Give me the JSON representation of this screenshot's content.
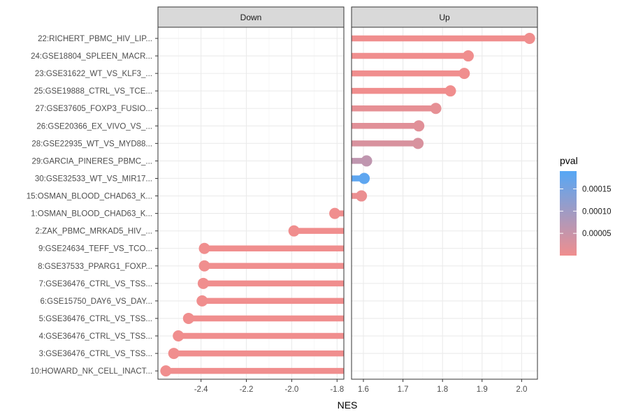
{
  "chart_data": {
    "type": "lollipop",
    "xlabel": "NES",
    "facets": [
      {
        "name": "Down",
        "xlim": [
          -2.59,
          -1.77
        ],
        "ticks": [
          -2.4,
          -2.2,
          -2.0,
          -1.8
        ],
        "tick_labels": [
          "-2.4",
          "-2.2",
          "-2.0",
          "-1.8"
        ]
      },
      {
        "name": "Up",
        "xlim": [
          1.57,
          2.04
        ],
        "ticks": [
          1.6,
          1.7,
          1.8,
          1.9,
          2.0
        ],
        "tick_labels": [
          "1.6",
          "1.7",
          "1.8",
          "1.9",
          "2.0"
        ]
      }
    ],
    "categories": [
      "22:RICHERT_PBMC_HIV_LIP...",
      "24:GSE18804_SPLEEN_MACR...",
      "23:GSE31622_WT_VS_KLF3_...",
      "25:GSE19888_CTRL_VS_TCE...",
      "27:GSE37605_FOXP3_FUSIO...",
      "26:GSE20366_EX_VIVO_VS_...",
      "28:GSE22935_WT_VS_MYD88...",
      "29:GARCIA_PINERES_PBMC_...",
      "30:GSE32533_WT_VS_MIR17...",
      "15:OSMAN_BLOOD_CHAD63_K...",
      "1:OSMAN_BLOOD_CHAD63_K...",
      "2:ZAK_PBMC_MRKAD5_HIV_...",
      "9:GSE24634_TEFF_VS_TCO...",
      "8:GSE37533_PPARG1_FOXP...",
      "7:GSE36476_CTRL_VS_TSS...",
      "6:GSE15750_DAY6_VS_DAY...",
      "5:GSE36476_CTRL_VS_TSS...",
      "4:GSE36476_CTRL_VS_TSS...",
      "3:GSE36476_CTRL_VS_TSS...",
      "10:HOWARD_NK_CELL_INACT..."
    ],
    "points": [
      {
        "category": "22:RICHERT_PBMC_HIV_LIP...",
        "facet": "Up",
        "nes": 2.02,
        "pval": 0.0
      },
      {
        "category": "24:GSE18804_SPLEEN_MACR...",
        "facet": "Up",
        "nes": 1.865,
        "pval": 0.0
      },
      {
        "category": "23:GSE31622_WT_VS_KLF3_...",
        "facet": "Up",
        "nes": 1.855,
        "pval": 0.0
      },
      {
        "category": "25:GSE19888_CTRL_VS_TCE...",
        "facet": "Up",
        "nes": 1.82,
        "pval": 0.0
      },
      {
        "category": "27:GSE37605_FOXP3_FUSIO...",
        "facet": "Up",
        "nes": 1.783,
        "pval": 1.2e-05
      },
      {
        "category": "26:GSE20366_EX_VIVO_VS_...",
        "facet": "Up",
        "nes": 1.74,
        "pval": 1.8e-05
      },
      {
        "category": "28:GSE22935_WT_VS_MYD88...",
        "facet": "Up",
        "nes": 1.738,
        "pval": 3e-05
      },
      {
        "category": "29:GARCIA_PINERES_PBMC_...",
        "facet": "Up",
        "nes": 1.608,
        "pval": 6e-05
      },
      {
        "category": "30:GSE32533_WT_VS_MIR17...",
        "facet": "Up",
        "nes": 1.602,
        "pval": 0.00018
      },
      {
        "category": "15:OSMAN_BLOOD_CHAD63_K...",
        "facet": "Up",
        "nes": 1.595,
        "pval": 6e-06
      },
      {
        "category": "1:OSMAN_BLOOD_CHAD63_K...",
        "facet": "Down",
        "nes": -1.81,
        "pval": 0.0
      },
      {
        "category": "2:ZAK_PBMC_MRKAD5_HIV_...",
        "facet": "Down",
        "nes": -1.99,
        "pval": 0.0
      },
      {
        "category": "9:GSE24634_TEFF_VS_TCO...",
        "facet": "Down",
        "nes": -2.385,
        "pval": 0.0
      },
      {
        "category": "8:GSE37533_PPARG1_FOXP...",
        "facet": "Down",
        "nes": -2.385,
        "pval": 0.0
      },
      {
        "category": "7:GSE36476_CTRL_VS_TSS...",
        "facet": "Down",
        "nes": -2.39,
        "pval": 0.0
      },
      {
        "category": "6:GSE15750_DAY6_VS_DAY...",
        "facet": "Down",
        "nes": -2.395,
        "pval": 0.0
      },
      {
        "category": "5:GSE36476_CTRL_VS_TSS...",
        "facet": "Down",
        "nes": -2.455,
        "pval": 0.0
      },
      {
        "category": "4:GSE36476_CTRL_VS_TSS...",
        "facet": "Down",
        "nes": -2.5,
        "pval": 0.0
      },
      {
        "category": "3:GSE36476_CTRL_VS_TSS...",
        "facet": "Down",
        "nes": -2.52,
        "pval": 0.0
      },
      {
        "category": "10:HOWARD_NK_CELL_INACT...",
        "facet": "Down",
        "nes": -2.555,
        "pval": 0.0
      }
    ],
    "legend": {
      "title": "pval",
      "placement": "right",
      "range": [
        0.0,
        0.00019
      ],
      "ticks": [
        5e-05,
        0.0001,
        0.00015
      ],
      "tick_labels": [
        "0.00005",
        "0.00010",
        "0.00015"
      ],
      "color_low": "#f08e8e",
      "color_high": "#56a7f5"
    },
    "grid": true
  }
}
